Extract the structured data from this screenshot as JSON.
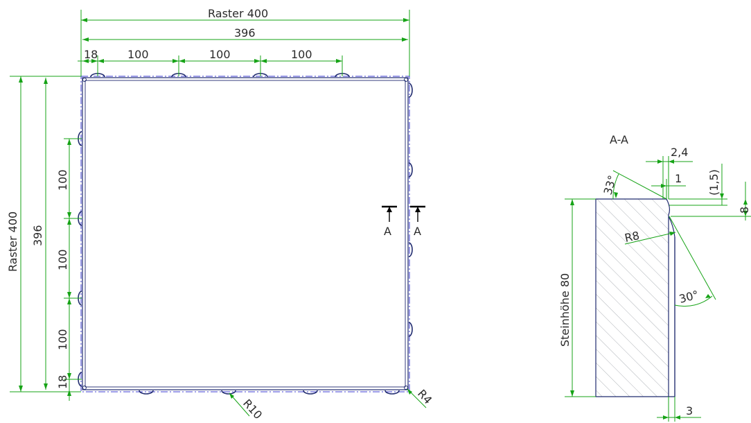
{
  "plan": {
    "raster_width_label": "Raster 400",
    "width_396_label": "396",
    "offset_18_top": "18",
    "spacing_top": [
      "100",
      "100",
      "100"
    ],
    "raster_height_label": "Raster 400",
    "height_396_label": "396",
    "spacing_left": [
      "100",
      "100",
      "100"
    ],
    "offset_18_left": "18",
    "radius_r10": "R10",
    "radius_r4": "R4",
    "section_marker": "A"
  },
  "section": {
    "title": "A-A",
    "dim_2_4": "2,4",
    "dim_1": "1",
    "dim_1_5": "(1,5)",
    "dim_8": "8",
    "angle_33": "33°",
    "radius_r8": "R8",
    "angle_30": "30°",
    "height_label": "Steinhöhe 80",
    "dim_3": "3"
  },
  "colors": {
    "dimension": "#16a316",
    "outline": "#1f2a6e",
    "centerline": "#3a3ad0",
    "hatch": "#9aa0a6"
  }
}
